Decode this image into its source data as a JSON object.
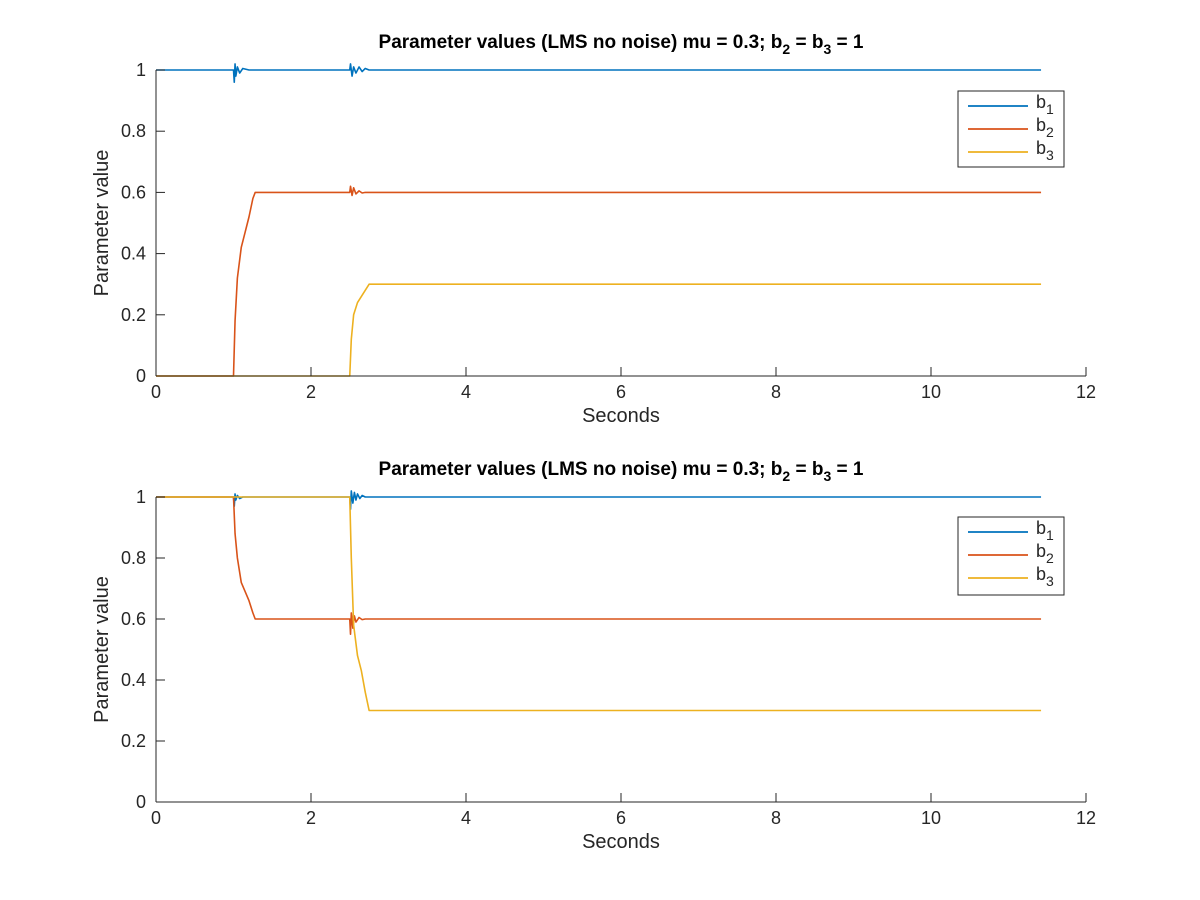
{
  "chart_data": [
    {
      "type": "line",
      "title": {
        "text": "Parameter values (LMS no noise) mu = 0.3; b",
        "sub1": "2",
        "mid": " = b",
        "sub2": "3",
        "tail": " = 1"
      },
      "xlabel": "Seconds",
      "ylabel": "Parameter value",
      "xlim": [
        0,
        12
      ],
      "ylim": [
        0,
        1
      ],
      "xticks": [
        "0",
        "2",
        "4",
        "6",
        "8",
        "10",
        "12"
      ],
      "yticks": [
        "0",
        "0.2",
        "0.4",
        "0.6",
        "0.8",
        "1"
      ],
      "grid": false,
      "legend_position": "top-right",
      "series": [
        {
          "name": "b",
          "sub": "1",
          "color": "#0072BD",
          "x": [
            0,
            1.0,
            1.01,
            1.02,
            1.03,
            1.05,
            1.08,
            1.12,
            1.2,
            1.3,
            2.5,
            2.51,
            2.53,
            2.55,
            2.58,
            2.62,
            2.66,
            2.7,
            2.75,
            11.42
          ],
          "y": [
            1,
            1,
            0.96,
            1.02,
            0.98,
            1.01,
            0.99,
            1.005,
            1.0,
            1.0,
            1.0,
            1.02,
            0.98,
            1.01,
            0.99,
            1.01,
            0.995,
            1.005,
            1.0,
            1.0
          ]
        },
        {
          "name": "b",
          "sub": "2",
          "color": "#D95319",
          "x": [
            0,
            1.0,
            1.02,
            1.05,
            1.1,
            1.15,
            1.2,
            1.25,
            1.28,
            2.5,
            2.51,
            2.53,
            2.55,
            2.58,
            2.62,
            2.66,
            2.7,
            11.42
          ],
          "y": [
            0,
            0,
            0.18,
            0.32,
            0.42,
            0.47,
            0.52,
            0.58,
            0.6,
            0.6,
            0.62,
            0.59,
            0.615,
            0.595,
            0.605,
            0.598,
            0.6,
            0.6
          ]
        },
        {
          "name": "b",
          "sub": "3",
          "color": "#EDB120",
          "x": [
            0,
            2.5,
            2.52,
            2.55,
            2.6,
            2.65,
            2.7,
            2.75,
            11.42
          ],
          "y": [
            0,
            0,
            0.12,
            0.2,
            0.24,
            0.26,
            0.28,
            0.3,
            0.3
          ]
        }
      ]
    },
    {
      "type": "line",
      "title": {
        "text": "Parameter values (LMS no noise) mu = 0.3; b",
        "sub1": "2",
        "mid": " = b",
        "sub2": "3",
        "tail": " = 1"
      },
      "xlabel": "Seconds",
      "ylabel": "Parameter value",
      "xlim": [
        0,
        12
      ],
      "ylim": [
        0,
        1
      ],
      "xticks": [
        "0",
        "2",
        "4",
        "6",
        "8",
        "10",
        "12"
      ],
      "yticks": [
        "0",
        "0.2",
        "0.4",
        "0.6",
        "0.8",
        "1"
      ],
      "grid": false,
      "legend_position": "top-right",
      "series": [
        {
          "name": "b",
          "sub": "1",
          "color": "#0072BD",
          "x": [
            0,
            1.0,
            1.01,
            1.02,
            1.03,
            1.05,
            1.08,
            1.12,
            1.2,
            1.3,
            2.5,
            2.51,
            2.52,
            2.54,
            2.56,
            2.58,
            2.6,
            2.63,
            2.66,
            2.7,
            2.75,
            11.42
          ],
          "y": [
            1,
            1,
            0.97,
            1.01,
            0.99,
            1.005,
            0.995,
            1.0,
            1.0,
            1.0,
            1.0,
            0.96,
            1.02,
            0.98,
            1.015,
            0.99,
            1.01,
            0.995,
            1.005,
            1.0,
            1.0,
            1.0
          ]
        },
        {
          "name": "b",
          "sub": "2",
          "color": "#D95319",
          "x": [
            0,
            1.0,
            1.02,
            1.05,
            1.1,
            1.15,
            1.2,
            1.25,
            1.28,
            2.5,
            2.51,
            2.52,
            2.54,
            2.56,
            2.58,
            2.62,
            2.66,
            2.7,
            11.42
          ],
          "y": [
            1,
            1,
            0.88,
            0.8,
            0.72,
            0.69,
            0.66,
            0.62,
            0.6,
            0.6,
            0.55,
            0.62,
            0.57,
            0.61,
            0.59,
            0.605,
            0.598,
            0.6,
            0.6
          ]
        },
        {
          "name": "b",
          "sub": "3",
          "color": "#EDB120",
          "x": [
            0,
            2.5,
            2.52,
            2.55,
            2.6,
            2.65,
            2.7,
            2.75,
            11.42
          ],
          "y": [
            1,
            1,
            0.8,
            0.58,
            0.48,
            0.43,
            0.36,
            0.3,
            0.3
          ]
        }
      ]
    }
  ]
}
